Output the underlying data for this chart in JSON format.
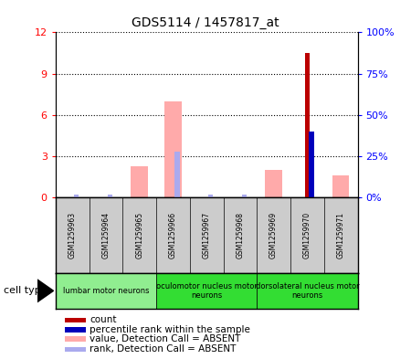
{
  "title": "GDS5114 / 1457817_at",
  "samples": [
    "GSM1259963",
    "GSM1259964",
    "GSM1259965",
    "GSM1259966",
    "GSM1259967",
    "GSM1259968",
    "GSM1259969",
    "GSM1259970",
    "GSM1259971"
  ],
  "count_values": [
    0,
    0,
    0,
    0,
    0,
    0,
    0,
    10.5,
    0
  ],
  "percentile_values": [
    0,
    0,
    0,
    0,
    0,
    0,
    0,
    40,
    0
  ],
  "absent_value_values": [
    0,
    0,
    2.3,
    7.0,
    0,
    0,
    2.0,
    0,
    1.6
  ],
  "absent_rank_values": [
    1.5,
    1.5,
    0,
    28,
    1.5,
    1.5,
    0,
    0,
    0
  ],
  "ylim_left": [
    0,
    12
  ],
  "ylim_right": [
    0,
    100
  ],
  "yticks_left": [
    0,
    3,
    6,
    9,
    12
  ],
  "yticks_right": [
    0,
    25,
    50,
    75,
    100
  ],
  "ytick_labels_left": [
    "0",
    "3",
    "6",
    "9",
    "12"
  ],
  "ytick_labels_right": [
    "0%",
    "25%",
    "50%",
    "75%",
    "100%"
  ],
  "cell_groups": [
    {
      "label": "lumbar motor neurons",
      "start": 0,
      "end": 3,
      "color": "#90EE90"
    },
    {
      "label": "oculomotor nucleus motor\nneurons",
      "start": 3,
      "end": 6,
      "color": "#33DD33"
    },
    {
      "label": "dorsolateral nucleus motor\nneurons",
      "start": 6,
      "end": 9,
      "color": "#33DD33"
    }
  ],
  "count_color": "#BB0000",
  "percentile_color": "#0000BB",
  "absent_value_color": "#FFAAAA",
  "absent_rank_color": "#AAAAEE",
  "legend_items": [
    {
      "label": "count",
      "color": "#BB0000"
    },
    {
      "label": "percentile rank within the sample",
      "color": "#0000BB"
    },
    {
      "label": "value, Detection Call = ABSENT",
      "color": "#FFAAAA"
    },
    {
      "label": "rank, Detection Call = ABSENT",
      "color": "#AAAAEE"
    }
  ],
  "bg_color": "#FFFFFF",
  "sample_box_color": "#CCCCCC",
  "grid_color": "#000000"
}
